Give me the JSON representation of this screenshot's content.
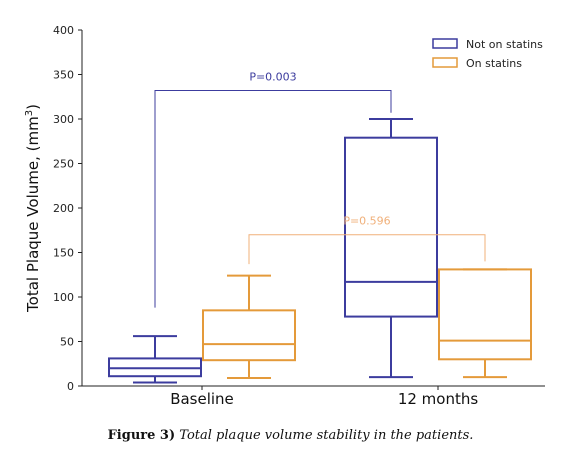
{
  "colors": {
    "not_on_statins": "#3c3c9e",
    "on_statins": "#e49a3a",
    "pval_baseline": "#3c3c9e",
    "pval_12m": "#f0b07a"
  },
  "chart_data": {
    "type": "box",
    "ylabel": "Total Plaque Volume, (mm",
    "ylabel_sup": "3",
    "ylabel_close": ")",
    "ylim": [
      0,
      400
    ],
    "yticks": [
      "0",
      "50",
      "100",
      "150",
      "200",
      "250",
      "300",
      "350",
      "400"
    ],
    "categories": [
      "Baseline",
      "12 months"
    ],
    "legend_position": "top-right",
    "series": [
      {
        "name": "Not on statins",
        "boxes": [
          {
            "min": 4,
            "q1": 11,
            "median": 20,
            "q3": 31,
            "max": 56
          },
          {
            "min": 10,
            "q1": 78,
            "median": 117,
            "q3": 279,
            "max": 300
          }
        ]
      },
      {
        "name": "On statins",
        "boxes": [
          {
            "min": 9,
            "q1": 29,
            "median": 47,
            "q3": 85,
            "max": 124
          },
          {
            "min": 10,
            "q1": 30,
            "median": 51,
            "q3": 131,
            "max": 131
          }
        ]
      }
    ],
    "annotations": [
      {
        "text": "P=0.003",
        "y": 332,
        "left_end": 88,
        "right_end": 307
      },
      {
        "text": "P=0.596",
        "y": 170,
        "left_end": 137,
        "right_end": 140
      }
    ]
  },
  "caption": {
    "label": "Figure 3)",
    "text": "Total plaque volume stability in the patients."
  }
}
